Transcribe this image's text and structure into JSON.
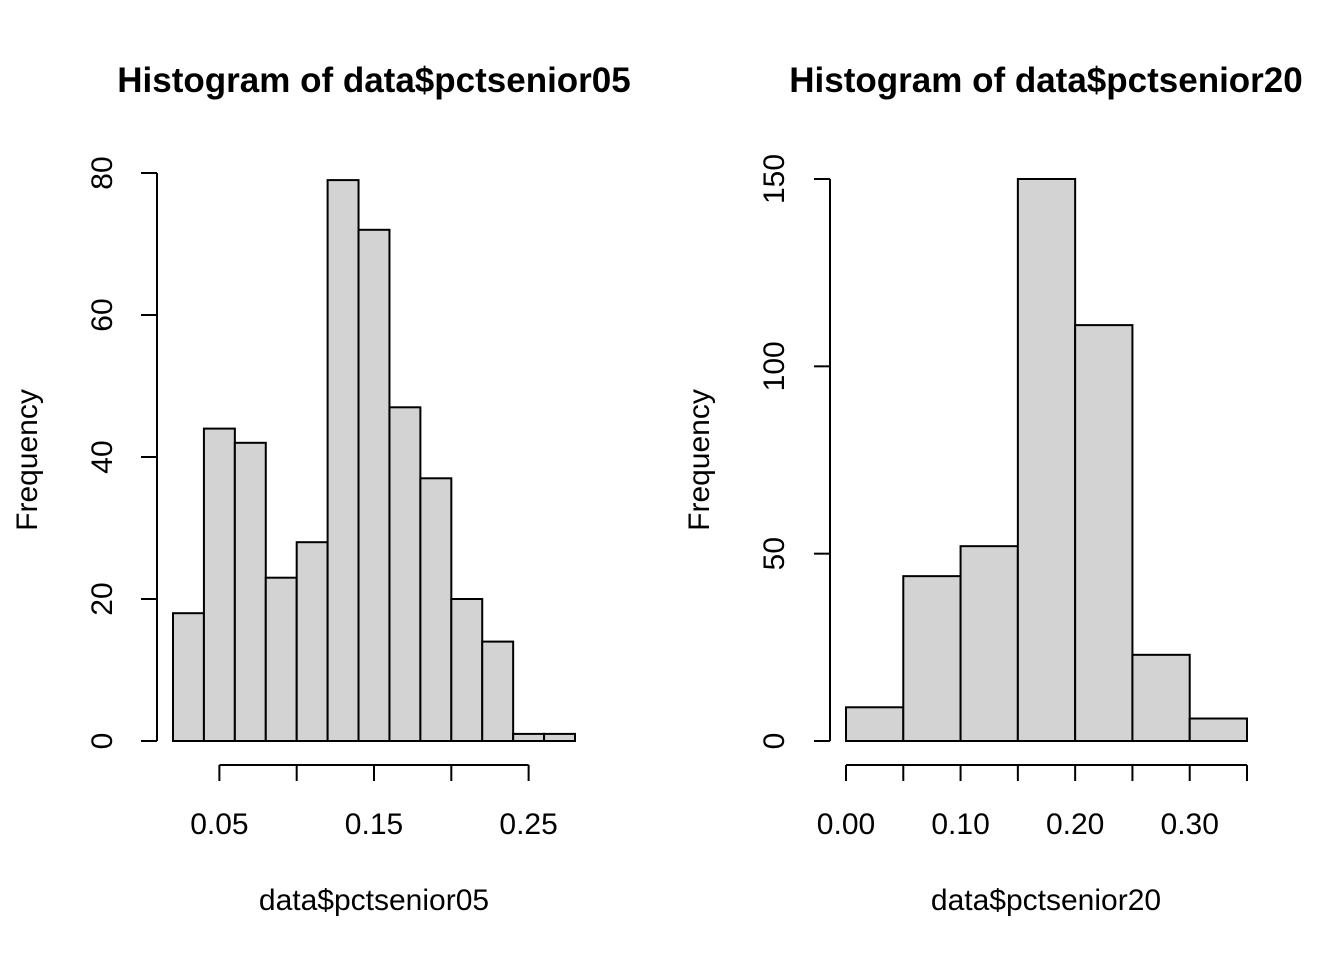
{
  "chart_data": [
    {
      "type": "bar",
      "title": "Histogram of data$pctsenior05",
      "xlabel": "data$pctsenior05",
      "ylabel": "Frequency",
      "bin_edges": [
        0.02,
        0.04,
        0.06,
        0.08,
        0.1,
        0.12,
        0.14,
        0.16,
        0.18,
        0.2,
        0.22,
        0.24,
        0.26,
        0.28
      ],
      "values": [
        18,
        44,
        42,
        23,
        28,
        79,
        72,
        47,
        37,
        20,
        14,
        1,
        1
      ],
      "x_ticks": [
        0.05,
        0.1,
        0.15,
        0.2,
        0.25
      ],
      "x_tick_labels": [
        "0.05",
        "",
        "0.15",
        "",
        "0.25"
      ],
      "y_ticks": [
        0,
        20,
        40,
        60,
        80
      ],
      "y_tick_labels": [
        "0",
        "20",
        "40",
        "60",
        "80"
      ],
      "xlim": [
        0.02,
        0.28
      ],
      "ylim": [
        0,
        80
      ],
      "grid": false,
      "colors": {
        "bar_fill": "#d3d3d3",
        "bar_stroke": "#000000"
      }
    },
    {
      "type": "bar",
      "title": "Histogram of data$pctsenior20",
      "xlabel": "data$pctsenior20",
      "ylabel": "Frequency",
      "bin_edges": [
        0.0,
        0.05,
        0.1,
        0.15,
        0.2,
        0.25,
        0.3,
        0.35
      ],
      "values": [
        9,
        44,
        52,
        150,
        111,
        23,
        6
      ],
      "x_ticks": [
        0.0,
        0.05,
        0.1,
        0.15,
        0.2,
        0.25,
        0.3,
        0.35
      ],
      "x_tick_labels": [
        "0.00",
        "",
        "0.10",
        "",
        "0.20",
        "",
        "0.30",
        ""
      ],
      "y_ticks": [
        0,
        50,
        100,
        150
      ],
      "y_tick_labels": [
        "0",
        "50",
        "100",
        "150"
      ],
      "xlim": [
        0.0,
        0.35
      ],
      "ylim": [
        0,
        150
      ],
      "grid": false,
      "colors": {
        "bar_fill": "#d3d3d3",
        "bar_stroke": "#000000"
      }
    }
  ]
}
